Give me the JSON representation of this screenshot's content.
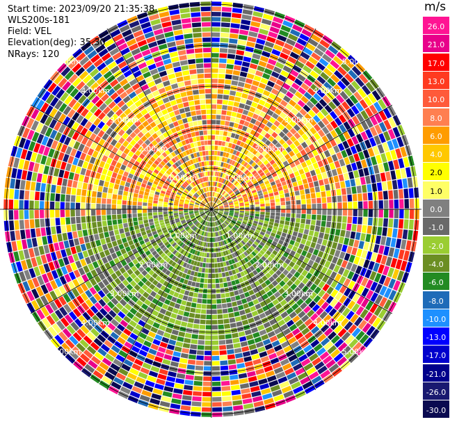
{
  "header": {
    "start_time": "Start time: 2023/09/20 21:35:38",
    "station": "WLS200s-181",
    "field": "Field: VEL",
    "elevation": "Elevation(deg): 35.30",
    "nrays": "NRays: 120"
  },
  "colorbar": {
    "unit": "m/s",
    "labels": [
      "26.0",
      "21.0",
      "17.0",
      "13.0",
      "10.0",
      "8.0",
      "6.0",
      "4.0",
      "2.0",
      "1.0",
      "0.0",
      "-1.0",
      "-2.0",
      "-4.0",
      "-6.0",
      "-8.0",
      "-10.0",
      "-13.0",
      "-17.0",
      "-21.0",
      "-26.0",
      "-30.0"
    ],
    "colors": [
      "#ff1493",
      "#e8008a",
      "#ff0000",
      "#ff3a20",
      "#ff5a3a",
      "#ff7f50",
      "#ff9c00",
      "#ffc800",
      "#ffff00",
      "#ffff66",
      "#808080",
      "#696969",
      "#9acd32",
      "#6b8e23",
      "#228b22",
      "#1e6bb8",
      "#1e90ff",
      "#0000ff",
      "#0000cd",
      "#00008b",
      "#191970",
      "#0a0a50"
    ]
  },
  "range_ring_labels": [
    "1.00km",
    "2.00km",
    "3.00km",
    "4.00km",
    "5.00km"
  ]
}
